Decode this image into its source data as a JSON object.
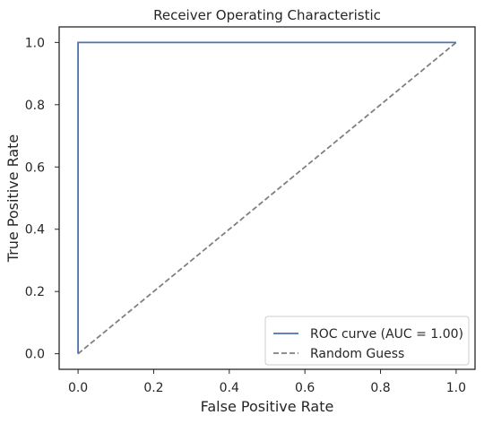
{
  "chart_data": {
    "type": "line",
    "title": "Receiver Operating Characteristic",
    "xlabel": "False Positive Rate",
    "ylabel": "True Positive Rate",
    "xlim": [
      -0.05,
      1.05
    ],
    "ylim": [
      -0.05,
      1.05
    ],
    "xticks": [
      0.0,
      0.2,
      0.4,
      0.6,
      0.8,
      1.0
    ],
    "yticks": [
      0.0,
      0.2,
      0.4,
      0.6,
      0.8,
      1.0
    ],
    "xtick_labels": [
      "0.0",
      "0.2",
      "0.4",
      "0.6",
      "0.8",
      "1.0"
    ],
    "ytick_labels": [
      "0.0",
      "0.2",
      "0.4",
      "0.6",
      "0.8",
      "1.0"
    ],
    "grid": false,
    "legend_position": "bottom-right",
    "series": [
      {
        "name": "ROC curve (AUC = 1.00)",
        "x": [
          0.0,
          0.0,
          1.0
        ],
        "y": [
          0.0,
          1.0,
          1.0
        ],
        "color": "#4c72b0",
        "style": "solid"
      },
      {
        "name": "Random Guess",
        "x": [
          0.0,
          1.0
        ],
        "y": [
          0.0,
          1.0
        ],
        "color": "#808080",
        "style": "dashed"
      }
    ],
    "legend": [
      "ROC curve (AUC = 1.00)",
      "Random Guess"
    ]
  }
}
